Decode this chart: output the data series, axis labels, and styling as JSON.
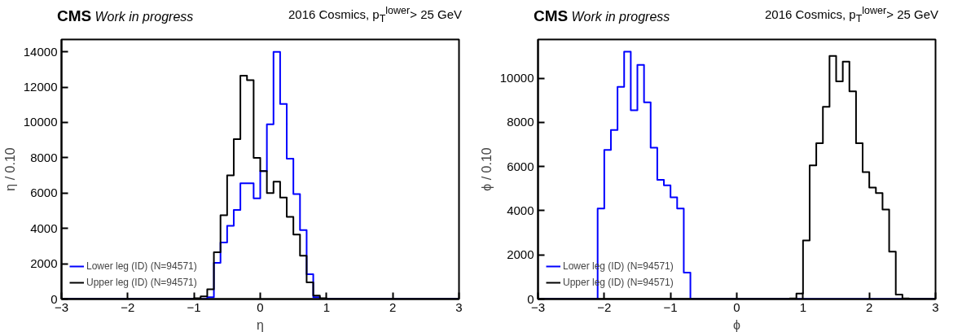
{
  "chart_data": [
    {
      "type": "histogram",
      "title": "CMS",
      "subtitle": "Work in progress",
      "annotations": [
        "2016 Cosmics, p$_{T}$$^{lower}$> 25 GeV"
      ],
      "xlabel": "η",
      "ylabel": "η / 0.10",
      "bins": [
        -3,
        -2.9,
        -2.8,
        -2.7,
        -2.6,
        -2.5,
        -2.4,
        -2.3,
        -2.2,
        -2.1,
        -2,
        -1.9,
        -1.8,
        -1.7,
        -1.6,
        -1.5,
        -1.4,
        -1.3,
        -1.2,
        -1.1,
        -1,
        -0.9,
        -0.8,
        -0.7,
        -0.6,
        -0.5,
        -0.4,
        -0.3,
        -0.2,
        -0.1,
        0,
        0.1,
        0.2,
        0.3,
        0.4,
        0.5,
        0.6,
        0.7,
        0.8,
        0.9,
        1,
        1.1,
        1.2,
        1.3,
        1.4,
        1.5,
        1.6,
        1.7,
        1.8,
        1.9,
        2,
        2.1,
        2.2,
        2.3,
        2.4,
        2.5,
        2.6,
        2.7,
        2.8,
        2.9,
        3
      ],
      "series": [
        {
          "name": "Lower leg (ID) (N=94571)",
          "color": "#0000ff",
          "values": [
            0,
            0,
            0,
            0,
            0,
            0,
            0,
            0,
            0,
            0,
            0,
            0,
            0,
            0,
            0,
            0,
            0,
            0,
            0,
            0,
            0,
            0,
            100,
            2050,
            3200,
            4150,
            5050,
            6550,
            6550,
            5700,
            7250,
            9900,
            14000,
            11050,
            7950,
            5950,
            3900,
            1400,
            100,
            0,
            0,
            0,
            0,
            0,
            0,
            0,
            0,
            0,
            0,
            0,
            0,
            0,
            0,
            0,
            0,
            0,
            0,
            0,
            0,
            0
          ]
        },
        {
          "name": "Upper leg (ID) (N=94571)",
          "color": "#000000",
          "values": [
            0,
            0,
            0,
            0,
            0,
            0,
            0,
            0,
            0,
            0,
            0,
            0,
            0,
            0,
            0,
            0,
            0,
            0,
            0,
            0,
            50,
            150,
            550,
            2650,
            4750,
            7000,
            9050,
            12650,
            12400,
            8000,
            7250,
            6000,
            6650,
            5750,
            4650,
            3650,
            2450,
            950,
            200,
            50,
            0,
            0,
            0,
            0,
            0,
            0,
            0,
            0,
            0,
            0,
            0,
            0,
            0,
            0,
            0,
            0,
            0,
            0,
            0,
            0
          ]
        }
      ],
      "xlim": [
        -3,
        3
      ],
      "xticks": [
        {
          "value": -3,
          "label": "−3"
        },
        {
          "value": -2,
          "label": "−2"
        },
        {
          "value": -1,
          "label": "−1"
        },
        0,
        1,
        2,
        3
      ],
      "ylim": [
        0,
        14700
      ],
      "yticks": [
        0,
        2000,
        4000,
        6000,
        8000,
        10000,
        12000,
        14000
      ],
      "grid": false,
      "legend": "bottom left"
    },
    {
      "type": "histogram",
      "title": "CMS",
      "subtitle": "Work in progress",
      "annotations": [
        "2016 Cosmics, p$_{T}$$^{lower}$> 25 GeV"
      ],
      "xlabel": "ϕ",
      "ylabel": "ϕ / 0.10",
      "bins": [
        -3,
        -2.9,
        -2.8,
        -2.7,
        -2.6,
        -2.5,
        -2.4,
        -2.3,
        -2.2,
        -2.1,
        -2,
        -1.9,
        -1.8,
        -1.7,
        -1.6,
        -1.5,
        -1.4,
        -1.3,
        -1.2,
        -1.1,
        -1,
        -0.9,
        -0.8,
        -0.7,
        -0.6,
        -0.5,
        -0.4,
        -0.3,
        -0.2,
        -0.1,
        0,
        0.1,
        0.2,
        0.3,
        0.4,
        0.5,
        0.6,
        0.7,
        0.8,
        0.9,
        1,
        1.1,
        1.2,
        1.3,
        1.4,
        1.5,
        1.6,
        1.7,
        1.8,
        1.9,
        2,
        2.1,
        2.2,
        2.3,
        2.4,
        2.5,
        2.6,
        2.7,
        2.8,
        2.9,
        3
      ],
      "series": [
        {
          "name": "Lower leg (ID) (N=94571)",
          "color": "#0000ff",
          "values": [
            0,
            0,
            0,
            0,
            0,
            0,
            0,
            0,
            0,
            4100,
            6750,
            7650,
            9600,
            11200,
            8550,
            10600,
            8900,
            6850,
            5400,
            5150,
            4600,
            4100,
            1200,
            0,
            0,
            0,
            0,
            0,
            0,
            0,
            0,
            0,
            0,
            0,
            0,
            0,
            0,
            0,
            0,
            0,
            0,
            0,
            0,
            0,
            0,
            0,
            0,
            0,
            0,
            0,
            0,
            0,
            0,
            0,
            0,
            0,
            0,
            0,
            0,
            0
          ]
        },
        {
          "name": "Upper leg (ID) (N=94571)",
          "color": "#000000",
          "values": [
            0,
            0,
            0,
            0,
            0,
            0,
            0,
            0,
            0,
            0,
            0,
            0,
            0,
            0,
            0,
            0,
            0,
            0,
            0,
            0,
            0,
            0,
            0,
            0,
            0,
            0,
            0,
            0,
            0,
            0,
            0,
            0,
            0,
            0,
            0,
            0,
            0,
            0,
            30,
            250,
            2650,
            6050,
            7050,
            8700,
            11000,
            9850,
            10750,
            9400,
            7050,
            5750,
            5050,
            4800,
            4050,
            2150,
            200,
            30,
            0,
            0,
            0,
            0
          ]
        }
      ],
      "xlim": [
        -3,
        3
      ],
      "xticks": [
        {
          "value": -3,
          "label": "−3"
        },
        {
          "value": -2,
          "label": "−2"
        },
        {
          "value": -1,
          "label": "−1"
        },
        0,
        1,
        2,
        3
      ],
      "ylim": [
        0,
        11750
      ],
      "yticks": [
        0,
        2000,
        4000,
        6000,
        8000,
        10000
      ],
      "grid": false,
      "legend": "bottom left"
    }
  ]
}
